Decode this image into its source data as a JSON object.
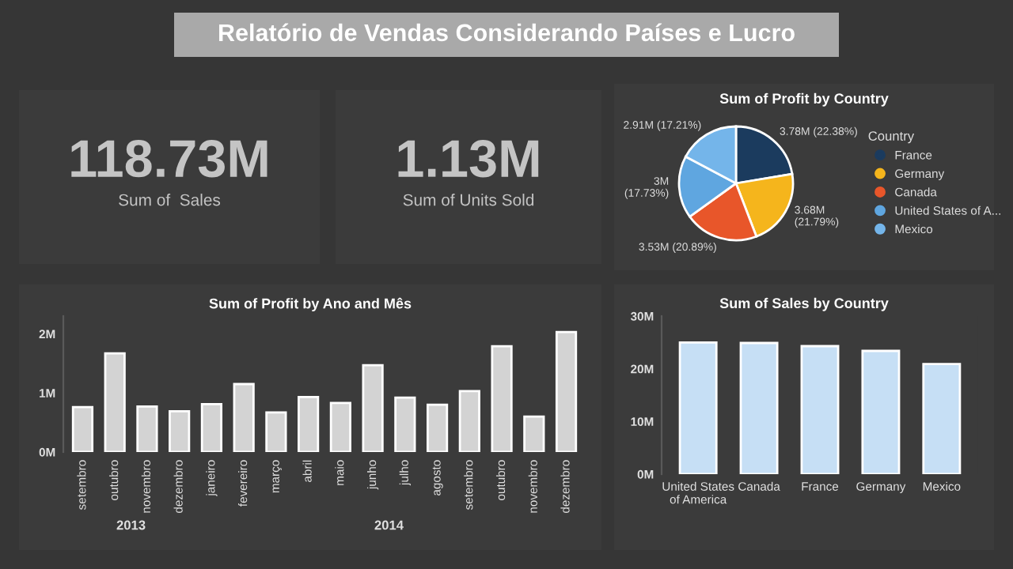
{
  "chart_data": [
    {
      "type": "other",
      "title": "Relatório de Vendas Considerando Países e Lucro"
    },
    {
      "type": "other",
      "annotations": [
        "118.73M",
        "Sum of  Sales"
      ]
    },
    {
      "type": "other",
      "annotations": [
        "1.13M",
        "Sum of Units Sold"
      ]
    },
    {
      "type": "pie",
      "title": "Sum of Profit by Country",
      "legend_title": "Country",
      "legend": "right",
      "categories": [
        "France",
        "Germany",
        "Canada",
        "United States of A...",
        "Mexico"
      ],
      "values": [
        22.38,
        21.79,
        20.89,
        17.73,
        17.21
      ],
      "value_labels": [
        "3.78M (22.38%)",
        "3.68M\n(21.79%)",
        "3.53M (20.89%)",
        "3M\n(17.73%)",
        "2.91M (17.21%)"
      ],
      "colors": [
        "#1b3b5e",
        "#f5b51c",
        "#e8562a",
        "#5fa6e0",
        "#74b5ea"
      ]
    },
    {
      "type": "bar",
      "title": "Sum of Profit by Ano and Mês",
      "categories": [
        "setembro",
        "outubro",
        "novembro",
        "dezembro",
        "janeiro",
        "fevereiro",
        "março",
        "abril",
        "maio",
        "junho",
        "julho",
        "agosto",
        "setembro",
        "outubro",
        "novembro",
        "dezembro"
      ],
      "values": [
        0.76,
        1.67,
        0.77,
        0.69,
        0.81,
        1.15,
        0.67,
        0.93,
        0.83,
        1.47,
        0.92,
        0.8,
        1.03,
        1.79,
        0.6,
        2.03
      ],
      "color": "#d3d3d3",
      "ylim": [
        0,
        2.3
      ],
      "yticks": [
        {
          "value": 0,
          "label": "0M"
        },
        {
          "value": 1,
          "label": "1M"
        },
        {
          "value": 2,
          "label": "2M"
        }
      ],
      "annotations": [
        "2013",
        "2014"
      ]
    },
    {
      "type": "bar",
      "title": "Sum of Sales by Country",
      "categories": [
        "United States\nof America",
        "Canada",
        "France",
        "Germany",
        "Mexico"
      ],
      "values": [
        25.0,
        24.9,
        24.3,
        23.4,
        20.9
      ],
      "color": "#c6dff5",
      "ylim": [
        0,
        30
      ],
      "yticks": [
        {
          "value": 0,
          "label": "0M"
        },
        {
          "value": 10,
          "label": "10M"
        },
        {
          "value": 20,
          "label": "20M"
        },
        {
          "value": 30,
          "label": "30M"
        }
      ]
    }
  ]
}
